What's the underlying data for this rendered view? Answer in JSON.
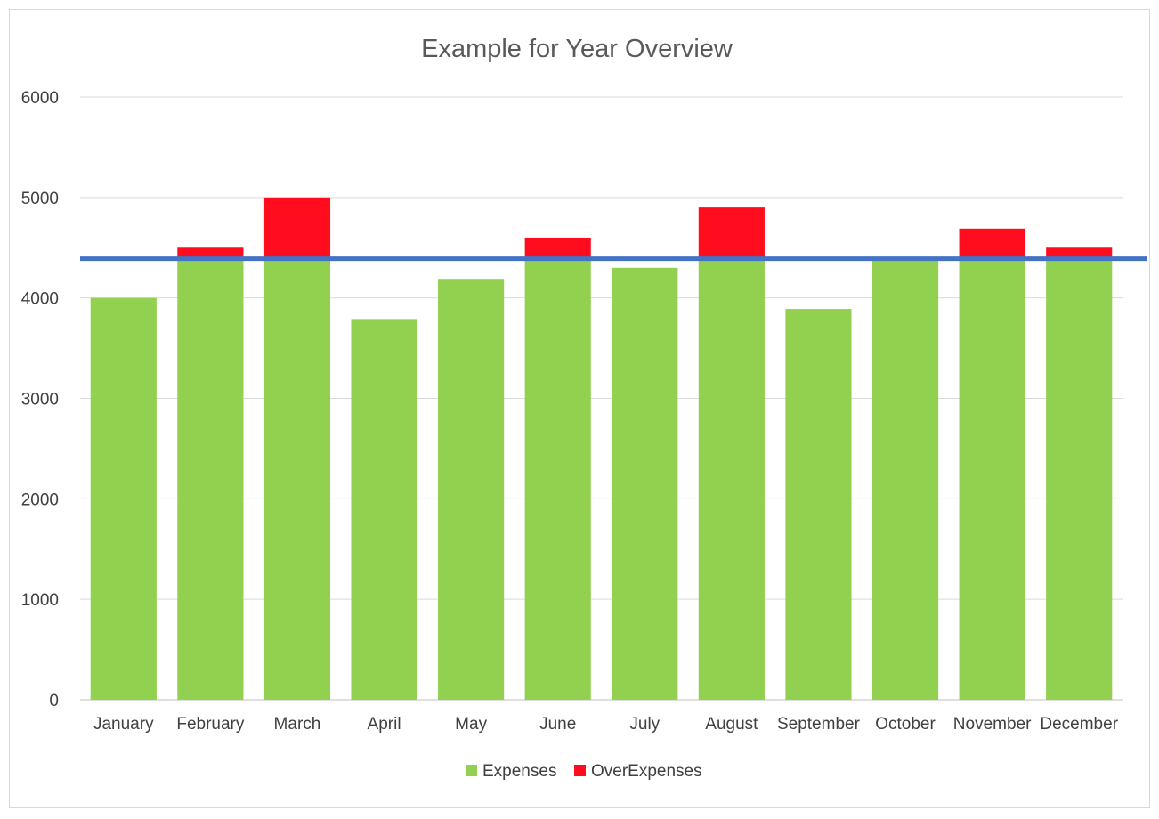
{
  "chart_data": {
    "type": "bar",
    "title": "Example for Year Overview",
    "xlabel": "",
    "ylabel": "",
    "categories": [
      "January",
      "February",
      "March",
      "April",
      "May",
      "June",
      "July",
      "August",
      "September",
      "October",
      "November",
      "December"
    ],
    "series": [
      {
        "name": "Expenses",
        "color": "#92d050",
        "values": [
          4000,
          4390,
          4390,
          3790,
          4190,
          4390,
          4300,
          4390,
          3890,
          4380,
          4390,
          4390
        ]
      },
      {
        "name": "OverExpenses",
        "color": "#ff0d1f",
        "values": [
          0,
          110,
          610,
          0,
          0,
          210,
          0,
          510,
          0,
          0,
          300,
          110
        ]
      }
    ],
    "stacked": true,
    "threshold_line": {
      "value": 4390,
      "color": "#4472c4"
    },
    "ylim": [
      0,
      6000
    ],
    "yticks": [
      0,
      1000,
      2000,
      3000,
      4000,
      5000,
      6000
    ],
    "grid": true,
    "legend_position": "bottom"
  }
}
